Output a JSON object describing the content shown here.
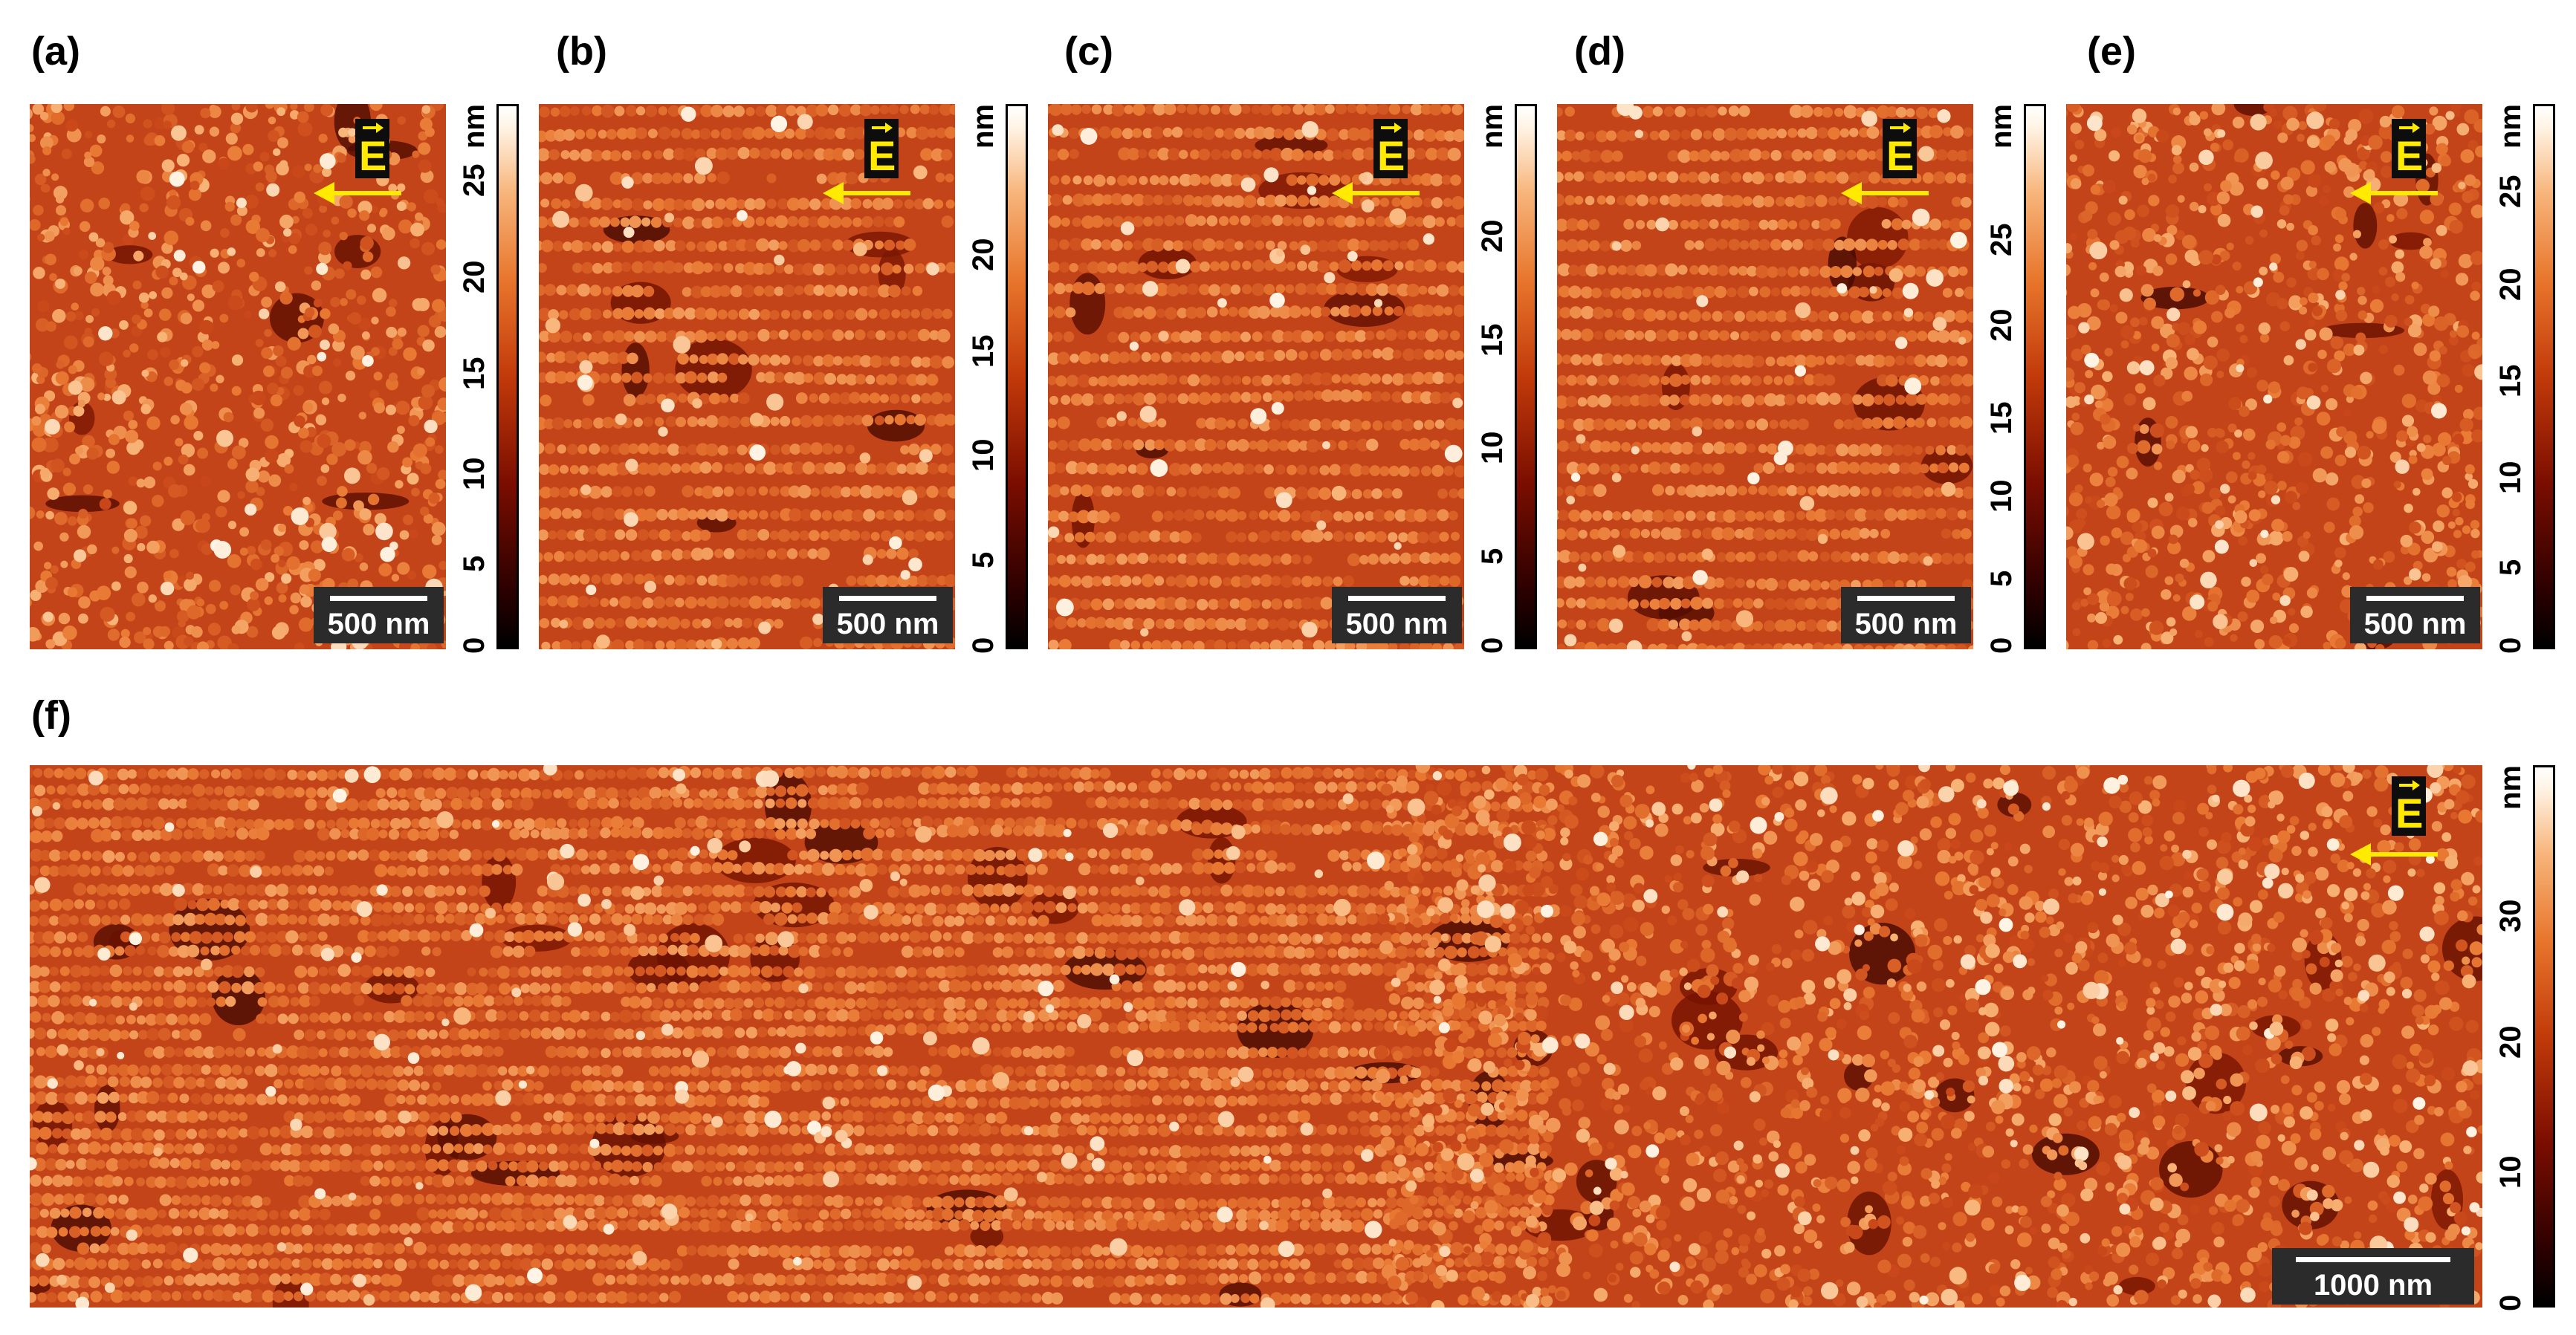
{
  "panels": [
    {
      "id": "a",
      "label": "(a)",
      "scale_label": "500 nm",
      "unit": "nm",
      "ticks": [
        "0",
        "5",
        "10",
        "15",
        "20",
        "25"
      ],
      "field_label": "E"
    },
    {
      "id": "b",
      "label": "(b)",
      "scale_label": "500 nm",
      "unit": "nm",
      "ticks": [
        "0",
        "5",
        "10",
        "15",
        "20"
      ],
      "field_label": "E"
    },
    {
      "id": "c",
      "label": "(c)",
      "scale_label": "500 nm",
      "unit": "nm",
      "ticks": [
        "0",
        "5",
        "10",
        "15",
        "20"
      ],
      "field_label": "E"
    },
    {
      "id": "d",
      "label": "(d)",
      "scale_label": "500 nm",
      "unit": "nm",
      "ticks": [
        "0",
        "5",
        "10",
        "15",
        "20",
        "25"
      ],
      "field_label": "E"
    },
    {
      "id": "e",
      "label": "(e)",
      "scale_label": "500 nm",
      "unit": "nm",
      "ticks": [
        "0",
        "5",
        "10",
        "15",
        "20",
        "25"
      ],
      "field_label": "E"
    },
    {
      "id": "f",
      "label": "(f)",
      "scale_label": "1000 nm",
      "unit": "nm",
      "ticks": [
        "0",
        "10",
        "20",
        "30"
      ],
      "field_label": "E"
    }
  ],
  "colors": {
    "colormap": [
      "#000000",
      "#7a0d00",
      "#c23a0a",
      "#e8762c",
      "#f7b57b",
      "#ffffff"
    ],
    "field_arrow": "#ffea00"
  }
}
